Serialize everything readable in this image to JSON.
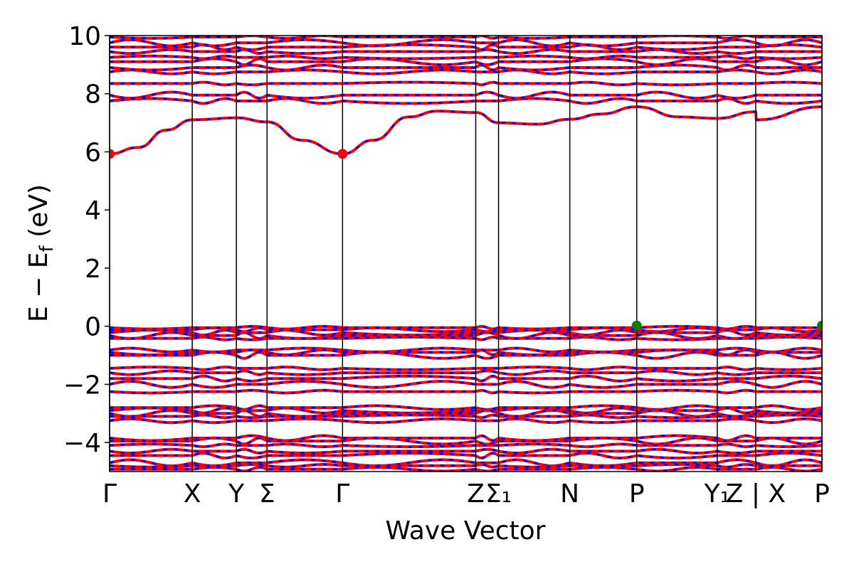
{
  "chart_data": {
    "type": "line",
    "title": "",
    "xlabel": "Wave Vector",
    "ylabel": "E − E_f (eV)",
    "ylabel_main": "E − E",
    "ylabel_sub": "f",
    "ylabel_unit": " (eV)",
    "ylim": [
      -5,
      10
    ],
    "yticks": [
      10,
      8,
      6,
      4,
      2,
      0,
      -2,
      -4
    ],
    "ytick_labels": [
      "10",
      "8",
      "6",
      "4",
      "2",
      "0",
      "−2",
      "−4"
    ],
    "grid": false,
    "legend": "none",
    "high_symmetry_points": [
      {
        "label": "Γ",
        "x": 0.0
      },
      {
        "label": "X",
        "x": 0.116
      },
      {
        "label": "Y",
        "x": 0.178
      },
      {
        "label": "Σ",
        "x": 0.221
      },
      {
        "label": "Γ",
        "x": 0.327
      },
      {
        "label": "Z",
        "x": 0.514
      },
      {
        "label": "Σ₁",
        "x": 0.546
      },
      {
        "label": "N",
        "x": 0.646
      },
      {
        "label": "P",
        "x": 0.74
      },
      {
        "label": "Y₁",
        "x": 0.853
      },
      {
        "label": "Z | X",
        "x": 0.907
      },
      {
        "label": "P",
        "x": 1.0
      }
    ],
    "band_extrema": [
      {
        "kind": "cbm",
        "x": 0.0,
        "y": 5.93,
        "color": "#ff0000"
      },
      {
        "kind": "cbm",
        "x": 0.327,
        "y": 5.93,
        "color": "#ff0000"
      },
      {
        "kind": "vbm",
        "x": 0.74,
        "y": 0.02,
        "color": "#008000"
      },
      {
        "kind": "vbm",
        "x": 1.0,
        "y": 0.02,
        "color": "#008000"
      }
    ],
    "lowest_conduction_band": {
      "x": [
        0.0,
        0.04,
        0.08,
        0.116,
        0.178,
        0.221,
        0.27,
        0.327,
        0.37,
        0.42,
        0.46,
        0.514,
        0.546,
        0.6,
        0.646,
        0.69,
        0.74,
        0.8,
        0.853,
        0.907,
        0.908,
        1.0
      ],
      "y": [
        5.93,
        6.15,
        6.75,
        7.1,
        7.17,
        7.03,
        6.4,
        5.93,
        6.4,
        7.2,
        7.4,
        7.35,
        7.0,
        6.95,
        7.12,
        7.3,
        7.55,
        7.2,
        7.15,
        7.38,
        7.1,
        7.55
      ]
    },
    "conduction_band_levels": [
      7.75,
      7.95,
      8.35,
      8.75,
      8.9,
      9.1,
      9.25,
      9.45,
      9.6,
      9.75,
      9.95
    ],
    "valence_band_levels": [
      -0.05,
      -0.12,
      -0.22,
      -0.32,
      -0.42,
      -0.82,
      -0.9,
      -1.0,
      -1.45,
      -1.6,
      -1.8,
      -2.0,
      -2.25,
      -2.8,
      -2.9,
      -3.0,
      -3.1,
      -3.25,
      -3.85,
      -3.95,
      -4.1,
      -4.3,
      -4.45,
      -4.7,
      -4.8,
      -4.92
    ],
    "colors": {
      "up": "#ff0000",
      "down": "#0000ff",
      "vline": "#000000",
      "cbm": "#ff0000",
      "vbm": "#008000"
    }
  }
}
